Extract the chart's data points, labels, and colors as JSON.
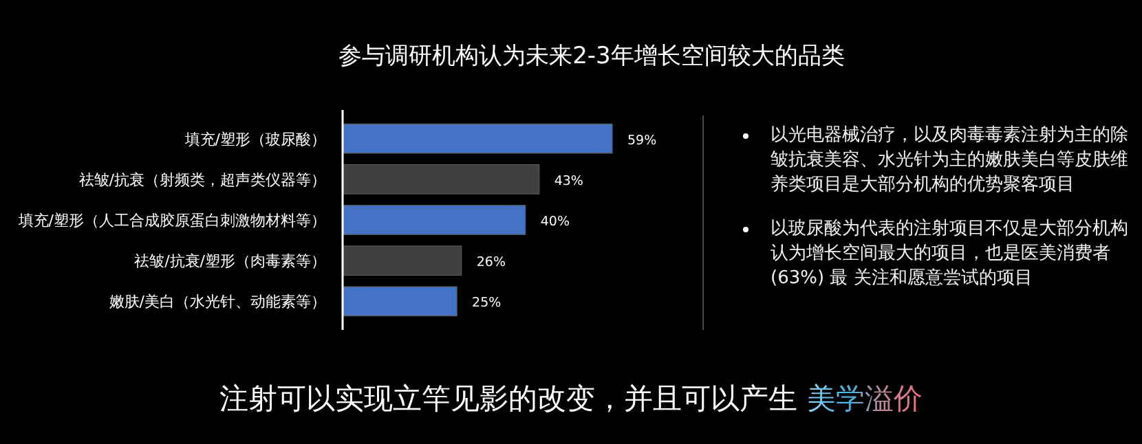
{
  "chart_data": {
    "type": "bar",
    "orientation": "horizontal",
    "title": "参与调研机构认为未来2-3年增长空间较大的品类",
    "categories": [
      "填充/塑形（玻尿酸）",
      "祛皱/抗衰（射频类，超声类仪器等）",
      "填充/塑形（人工合成胶原蛋白刺激物材料等）",
      "祛皱/抗衰/塑形（肉毒素等）",
      "嫩肤/美白（水光针、动能素等）"
    ],
    "values": [
      59,
      43,
      40,
      26,
      25
    ],
    "value_labels": [
      "59%",
      "43%",
      "40%",
      "26%",
      "25%"
    ],
    "colors": [
      "#4472c4",
      "#404040",
      "#4472c4",
      "#404040",
      "#4472c4"
    ],
    "annotations": [
      "以光电器械治疗，以及肉毒毒素注射为主的除皱抗衰美容、水光针为主的嫩肤美白等皮肤维养类项目是大部分机构的优势聚客项目",
      "以玻尿酸为代表的注射项目不仅是大部分机构认为增长空间最大的项目，也是医美消费者 (63%) 最 关注和愿意尝试的项目",
      "注射可以实现立竿见影的改变，并且可以产生",
      "美学溢价"
    ]
  }
}
